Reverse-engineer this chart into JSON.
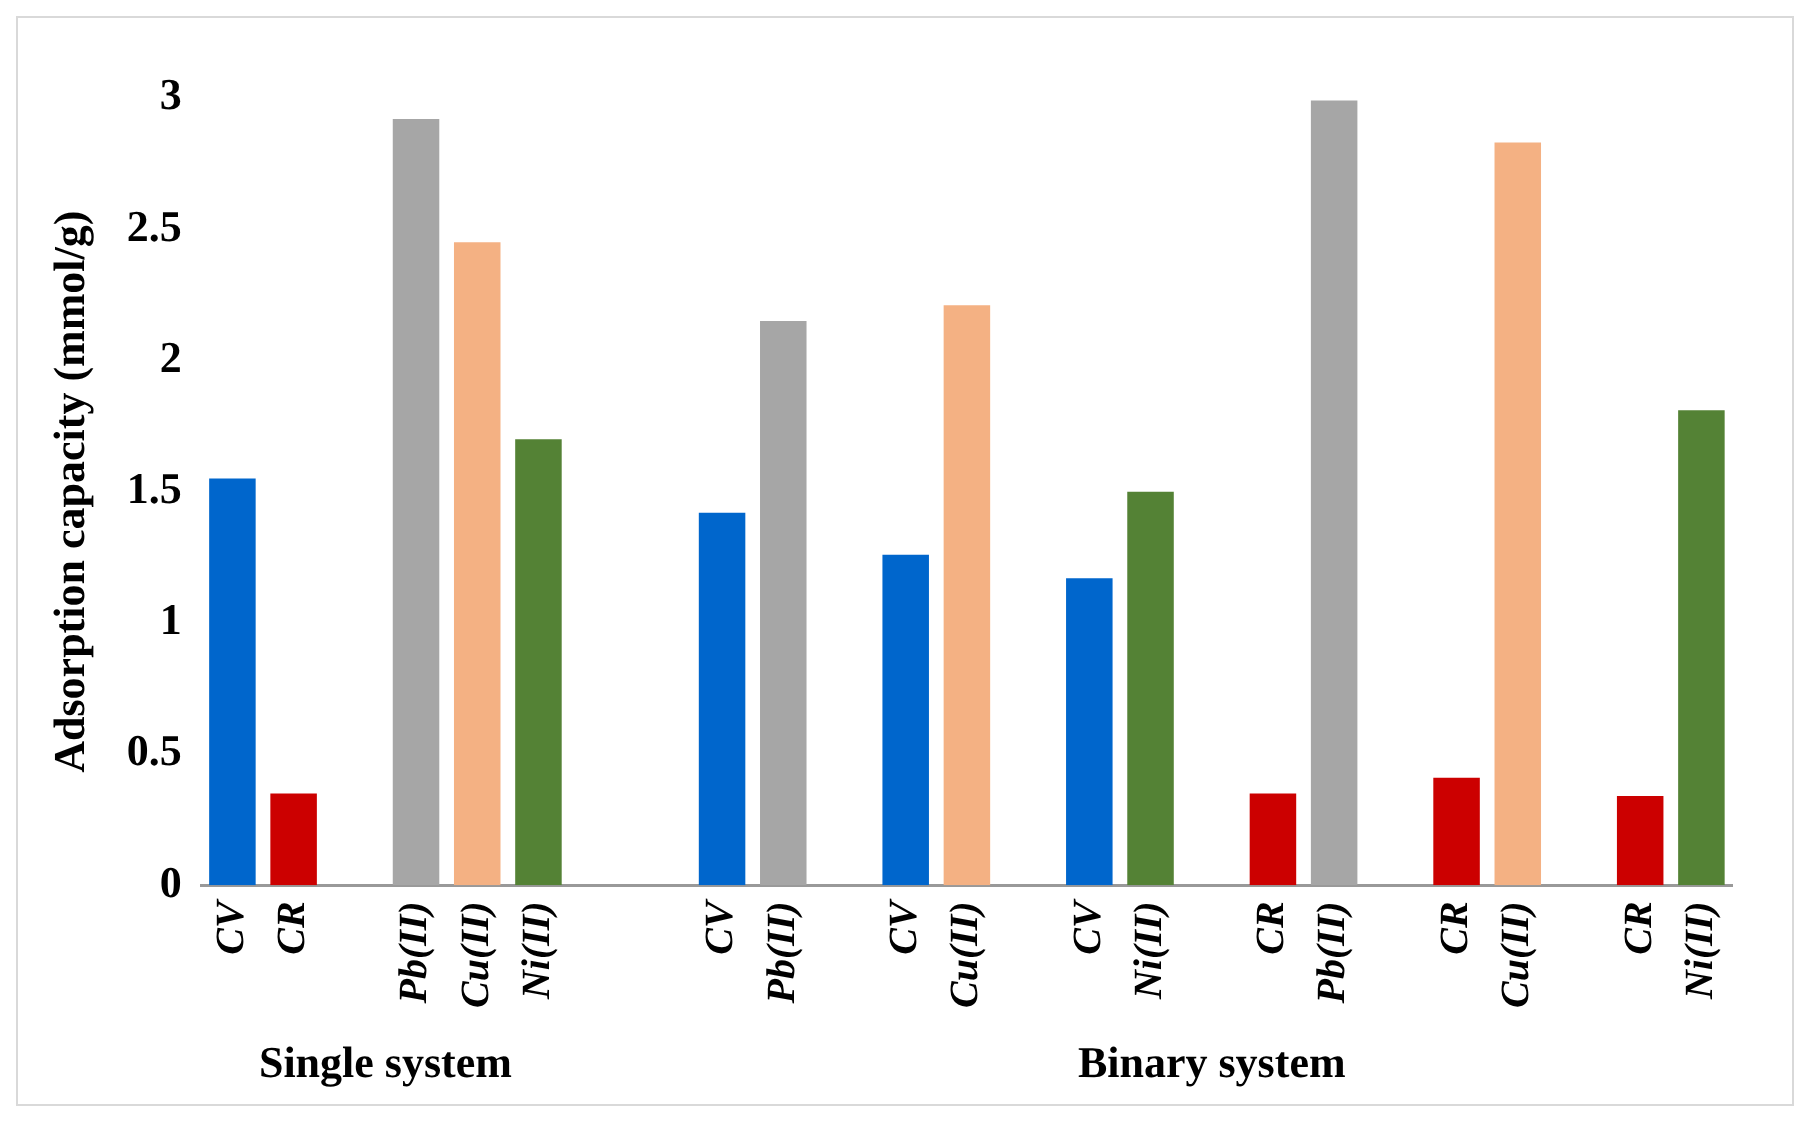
{
  "chart_data": {
    "type": "bar",
    "ylabel": "Adsorption capacity (mmol/g)",
    "categories": [
      "CV",
      "CR",
      null,
      "Pb(II)",
      "Cu(II)",
      "Ni(II)",
      null,
      null,
      "CV",
      "Pb(II)",
      null,
      "CV",
      "Cu(II)",
      null,
      "CV",
      "Ni(II)",
      null,
      "CR",
      "Pb(II)",
      null,
      "CR",
      "Cu(II)",
      null,
      "CR",
      "Ni(II)"
    ],
    "values": [
      1.55,
      0.35,
      null,
      2.92,
      2.45,
      1.7,
      null,
      null,
      1.42,
      2.15,
      null,
      1.26,
      2.21,
      null,
      1.17,
      1.5,
      null,
      0.35,
      2.99,
      null,
      0.41,
      2.83,
      null,
      0.34,
      1.81
    ],
    "colors": [
      "#0066cc",
      "#cc0000",
      null,
      "#a6a6a6",
      "#f4b183",
      "#548235",
      null,
      null,
      "#0066cc",
      "#a6a6a6",
      null,
      "#0066cc",
      "#f4b183",
      null,
      "#0066cc",
      "#548235",
      null,
      "#cc0000",
      "#a6a6a6",
      null,
      "#cc0000",
      "#f4b183",
      null,
      "#cc0000",
      "#548235"
    ],
    "ylim": [
      0,
      3
    ],
    "yticks": [
      0,
      0.5,
      1,
      1.5,
      2,
      2.5,
      3
    ],
    "grid": false,
    "legend": false,
    "annotations": [
      "Single system",
      "Binary system"
    ]
  }
}
